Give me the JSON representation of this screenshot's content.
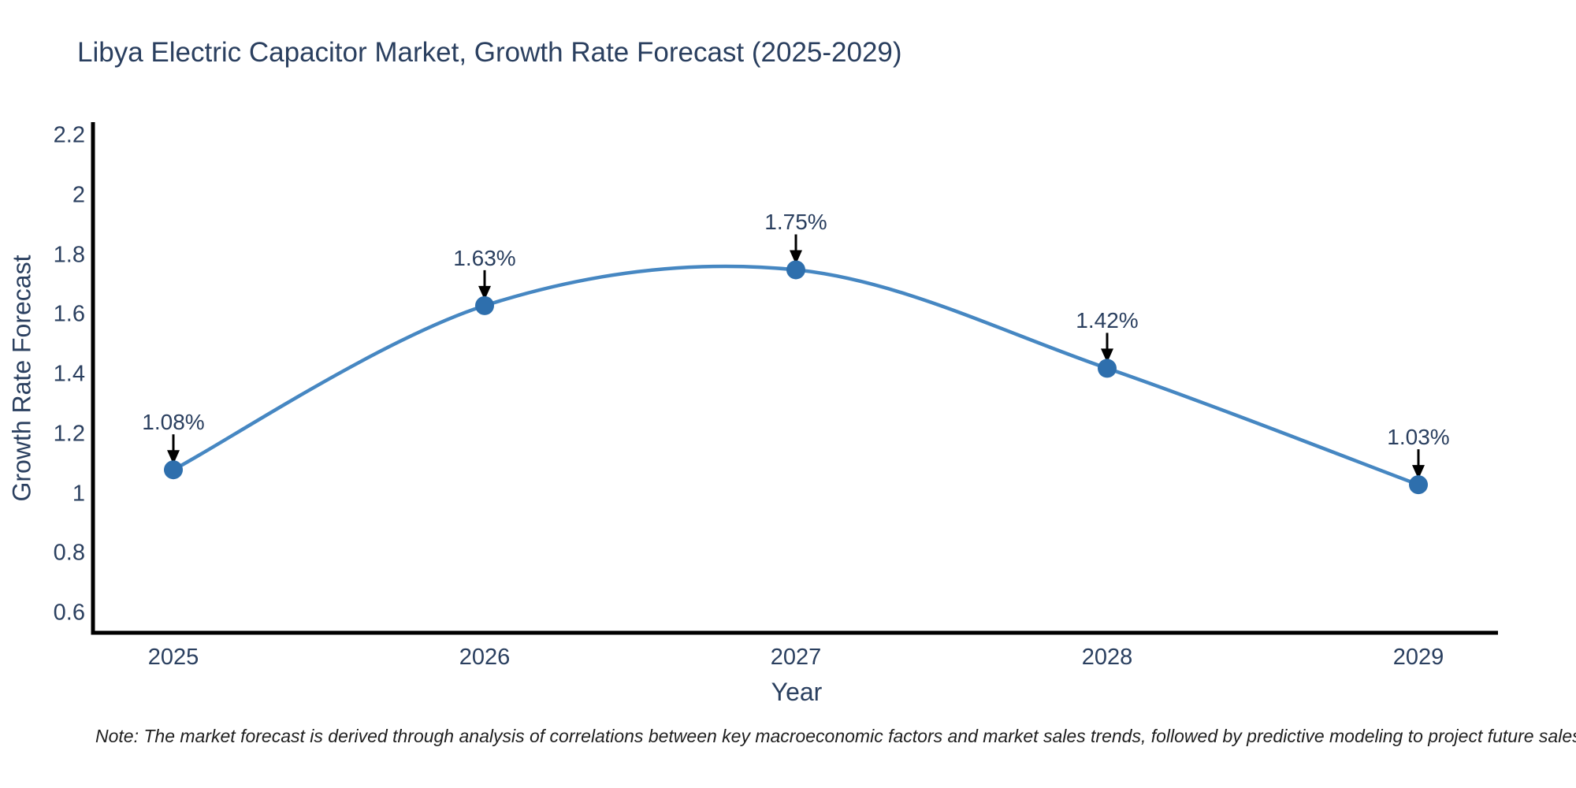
{
  "title": "Libya Electric Capacitor Market, Growth Rate Forecast (2025-2029)",
  "note": "Note: The market forecast is derived through analysis of correlations between key macroeconomic factors and market sales trends, followed by predictive modeling to project future sales",
  "chart_data": {
    "type": "line",
    "title": "Libya Electric Capacitor Market, Growth Rate Forecast (2025-2029)",
    "x": [
      "2025",
      "2026",
      "2027",
      "2028",
      "2029"
    ],
    "values": [
      1.08,
      1.63,
      1.75,
      1.42,
      1.03
    ],
    "point_labels": [
      "1.08%",
      "1.63%",
      "1.75%",
      "1.42%",
      "1.03%"
    ],
    "xlabel": "Year",
    "ylabel": "Growth Rate Forecast",
    "yticks": [
      0.6,
      0.8,
      1,
      1.2,
      1.4,
      1.6,
      1.8,
      2,
      2.2
    ],
    "ylim": [
      0.5,
      2.27
    ],
    "line_shape": "spline",
    "grid": false,
    "legend": "none",
    "colors": {
      "line": "#4687c2",
      "marker": "#2e6fad",
      "arrow": "#000000",
      "axis": "#000000",
      "text": "#2a3f5f",
      "note_text": "#1f1f1f",
      "background": "#ffffff"
    }
  }
}
